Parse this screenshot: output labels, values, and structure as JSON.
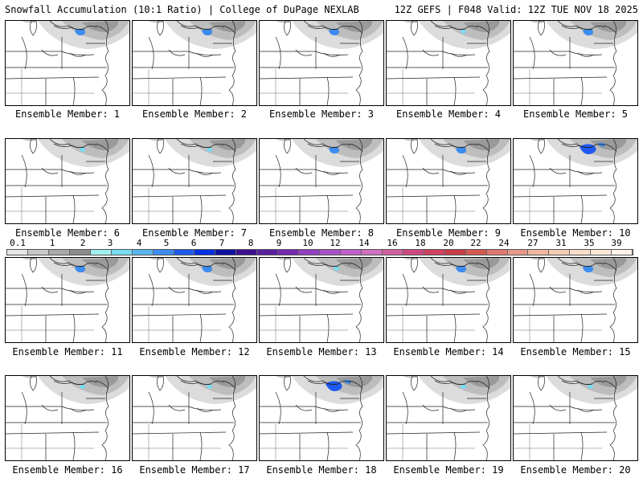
{
  "header": {
    "left_title": "Snowfall Accumulation (10:1 Ratio) | College of DuPage NEXLAB",
    "right_title": "12Z GEFS | F048 Valid: 12Z TUE NOV 18 2025"
  },
  "members": [
    {
      "label": "Ensemble Member: 1",
      "intensity": "moderate"
    },
    {
      "label": "Ensemble Member: 2",
      "intensity": "moderate"
    },
    {
      "label": "Ensemble Member: 3",
      "intensity": "moderate"
    },
    {
      "label": "Ensemble Member: 4",
      "intensity": "light"
    },
    {
      "label": "Ensemble Member: 5",
      "intensity": "moderate"
    },
    {
      "label": "Ensemble Member: 6",
      "intensity": "light"
    },
    {
      "label": "Ensemble Member: 7",
      "intensity": "light"
    },
    {
      "label": "Ensemble Member: 8",
      "intensity": "moderate"
    },
    {
      "label": "Ensemble Member: 9",
      "intensity": "moderate"
    },
    {
      "label": "Ensemble Member: 10",
      "intensity": "heavy"
    },
    {
      "label": "Ensemble Member: 11",
      "intensity": "moderate"
    },
    {
      "label": "Ensemble Member: 12",
      "intensity": "moderate"
    },
    {
      "label": "Ensemble Member: 13",
      "intensity": "light"
    },
    {
      "label": "Ensemble Member: 14",
      "intensity": "moderate"
    },
    {
      "label": "Ensemble Member: 15",
      "intensity": "moderate"
    },
    {
      "label": "Ensemble Member: 16",
      "intensity": "light"
    },
    {
      "label": "Ensemble Member: 17",
      "intensity": "light"
    },
    {
      "label": "Ensemble Member: 18",
      "intensity": "heavy"
    },
    {
      "label": "Ensemble Member: 19",
      "intensity": "light"
    },
    {
      "label": "Ensemble Member: 20",
      "intensity": "light"
    }
  ],
  "legend": {
    "labels": [
      "0.1",
      "1",
      "2",
      "3",
      "4",
      "5",
      "6",
      "7",
      "8",
      "9",
      "10",
      "12",
      "14",
      "16",
      "18",
      "20",
      "22",
      "24",
      "27",
      "31",
      "35",
      "39"
    ],
    "colors": [
      "#e6e6e6",
      "#c8c8c8",
      "#aaaaaa",
      "#8c8c8c",
      "#a0f0f0",
      "#78dcf0",
      "#5ab4f0",
      "#3c8cf0",
      "#1e5af0",
      "#0030e0",
      "#1010a0",
      "#3c1090",
      "#5a20a0",
      "#7828b0",
      "#9040c0",
      "#a850c8",
      "#c060c8",
      "#d070c0",
      "#d060a0",
      "#d04880",
      "#d04060",
      "#c83c48",
      "#d45a50",
      "#e07870",
      "#e89888",
      "#f0b8a0",
      "#f4ccb4",
      "#f8dcc8",
      "#fbe8d8",
      "#fdf2e8"
    ]
  }
}
